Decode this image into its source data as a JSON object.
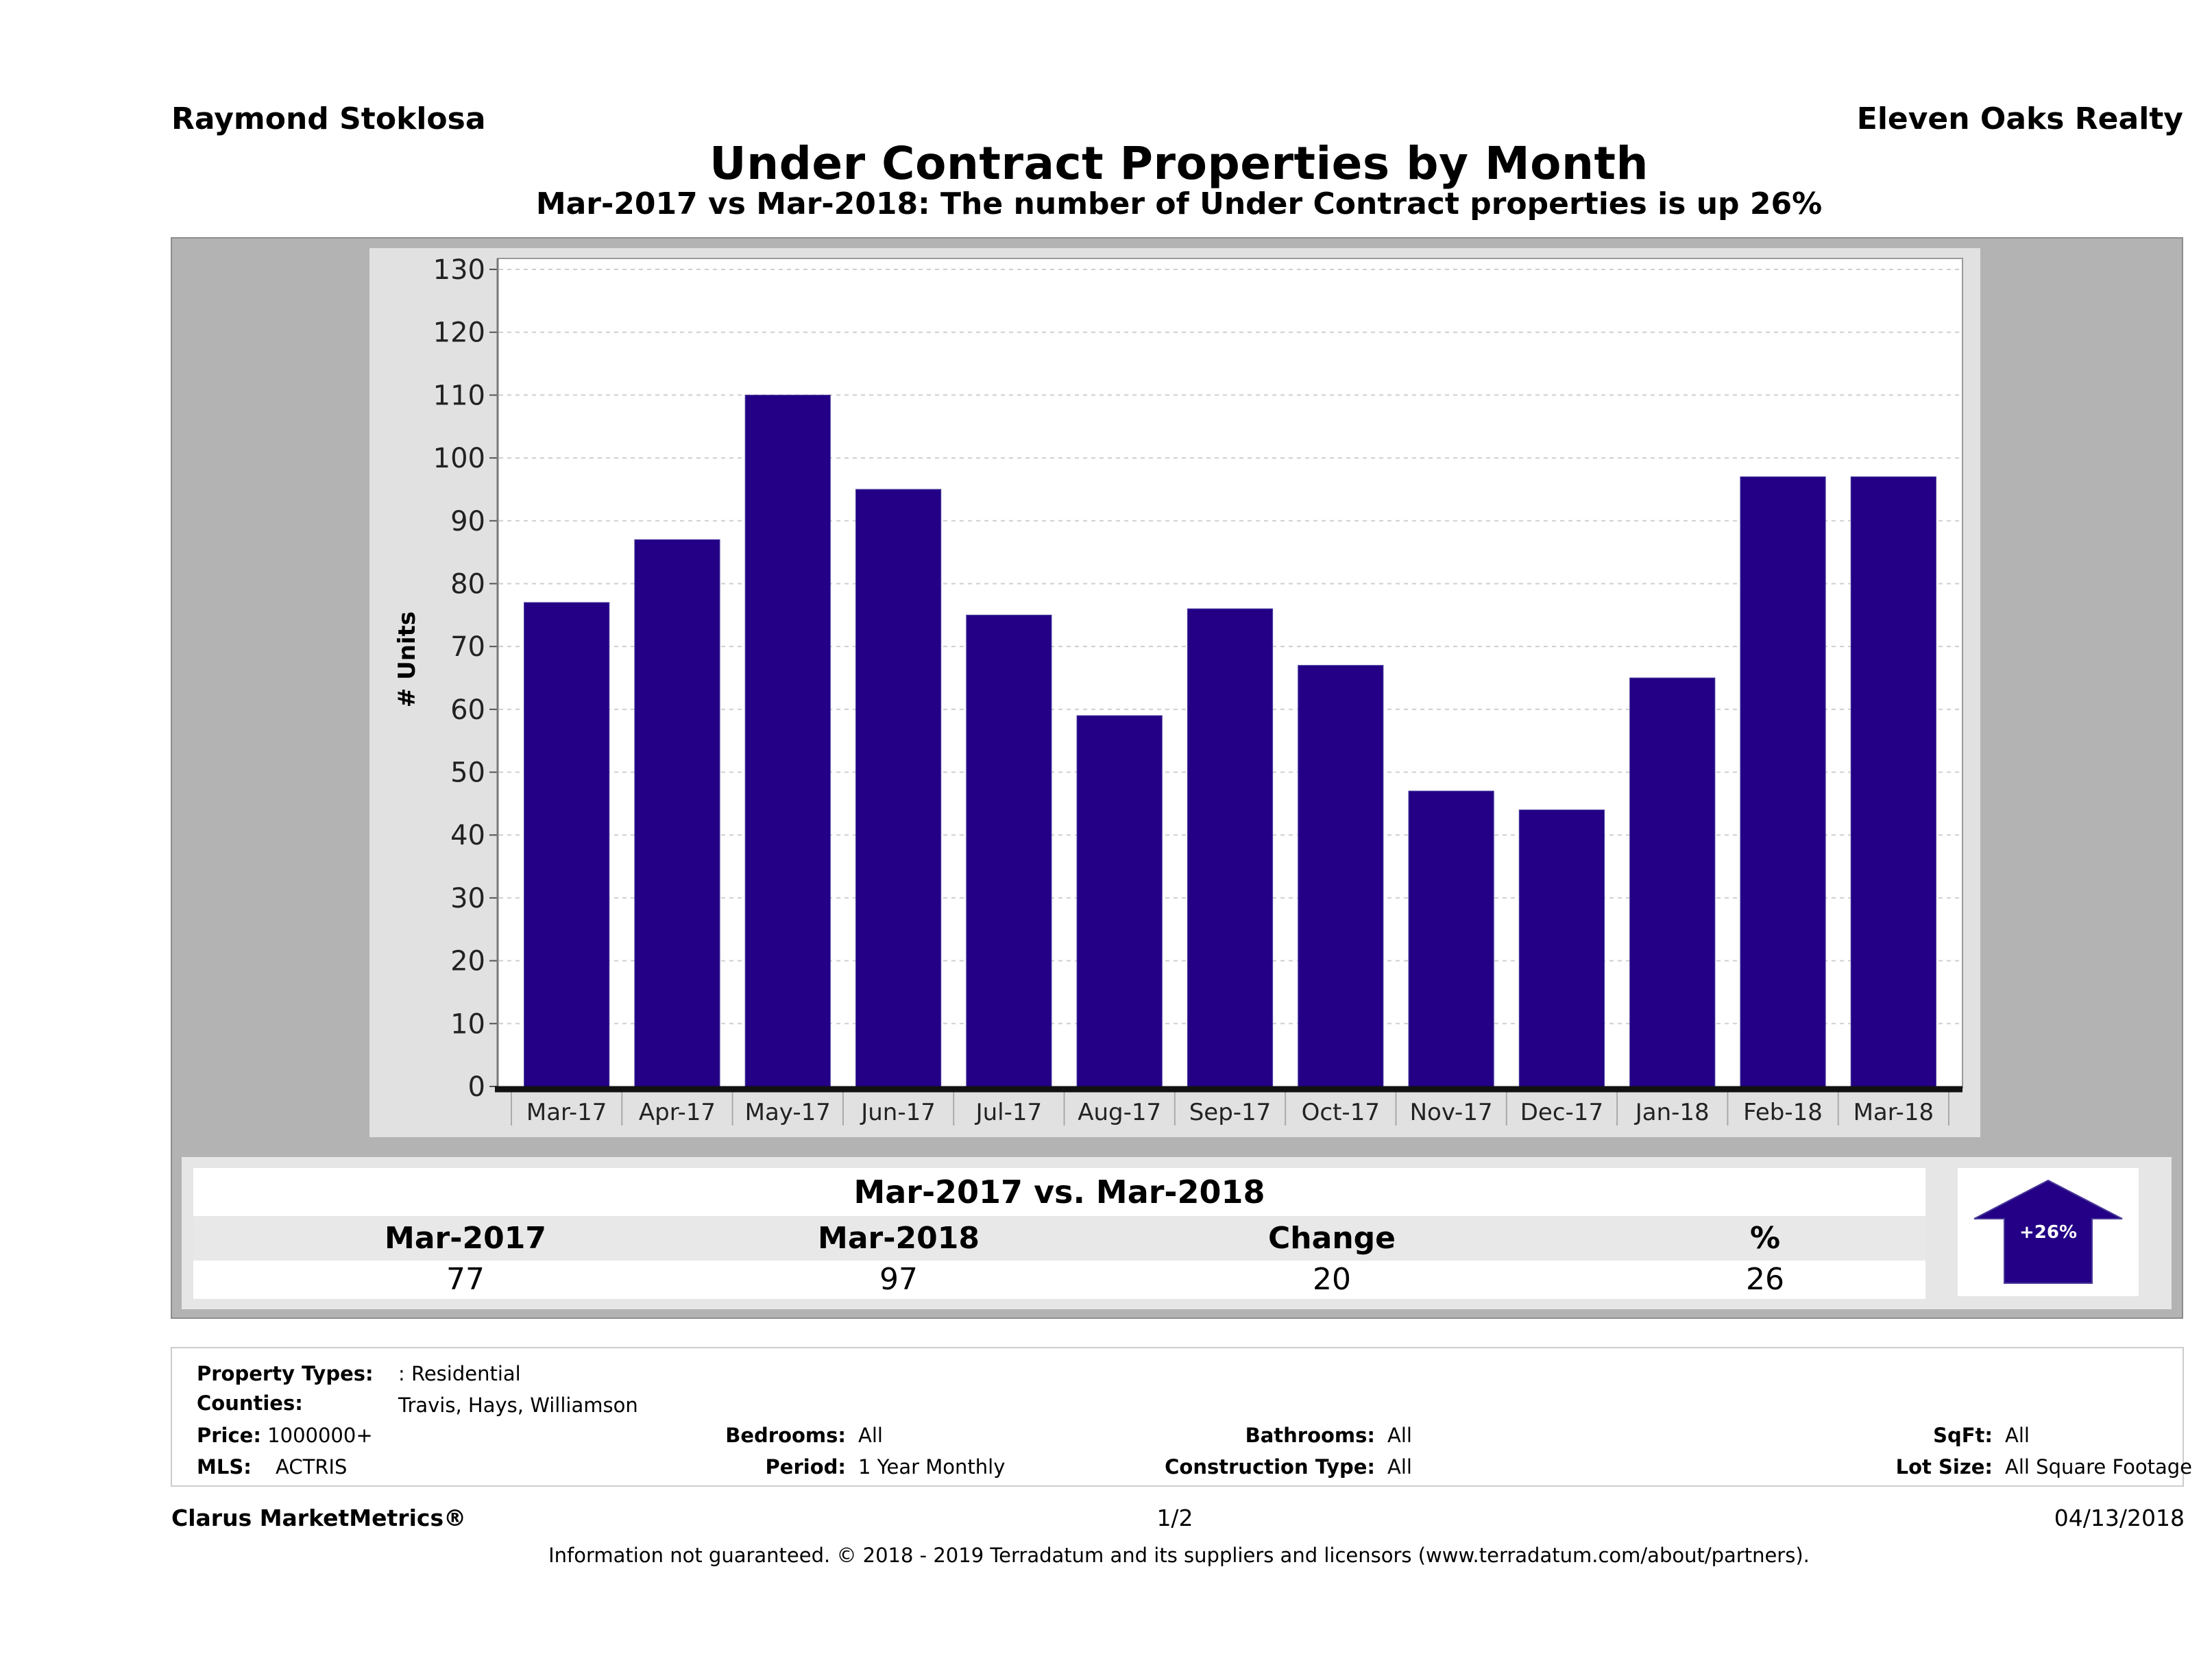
{
  "header": {
    "agent_name": "Raymond Stoklosa",
    "brokerage_name": "Eleven Oaks Realty",
    "title": "Under Contract Properties by Month",
    "subtitle": "Mar-2017 vs Mar-2018: The number of Under Contract  properties is up 26%"
  },
  "chart_data": {
    "type": "bar",
    "title": "Under Contract Properties by Month",
    "xlabel": "",
    "ylabel": "# Units",
    "categories": [
      "Mar-17",
      "Apr-17",
      "May-17",
      "Jun-17",
      "Jul-17",
      "Aug-17",
      "Sep-17",
      "Oct-17",
      "Nov-17",
      "Dec-17",
      "Jan-18",
      "Feb-18",
      "Mar-18"
    ],
    "values": [
      77,
      87,
      110,
      95,
      75,
      59,
      76,
      67,
      47,
      44,
      65,
      97,
      97
    ],
    "ylim": [
      0,
      130
    ],
    "yticks": [
      0,
      10,
      20,
      30,
      40,
      50,
      60,
      70,
      80,
      90,
      100,
      110,
      120,
      130
    ],
    "grid": true,
    "legend": "none",
    "bar_color": "#230085"
  },
  "summary": {
    "title": "Mar-2017 vs. Mar-2018",
    "headers": [
      "Mar-2017",
      "Mar-2018",
      "Change",
      "%"
    ],
    "values": [
      "77",
      "97",
      "20",
      "26"
    ],
    "badge_label": "+26%",
    "badge_direction": "up",
    "badge_color": "#230085"
  },
  "filters": {
    "property_types": {
      "label": "Property Types:",
      "value": ": Residential"
    },
    "counties": {
      "label": "Counties:",
      "value": "Travis, Hays, Williamson"
    },
    "price": {
      "label": "Price:",
      "value": "1000000+"
    },
    "mls": {
      "label": "MLS:",
      "value": "ACTRIS"
    },
    "bedrooms": {
      "label": "Bedrooms:",
      "value": "All"
    },
    "period": {
      "label": "Period:",
      "value": "1 Year Monthly"
    },
    "bathrooms": {
      "label": "Bathrooms:",
      "value": "All"
    },
    "construction_type": {
      "label": "Construction Type:",
      "value": "All"
    },
    "sqft": {
      "label": "SqFt:",
      "value": "All"
    },
    "lot_size": {
      "label": "Lot Size:",
      "value": "All Square Footage"
    }
  },
  "footer": {
    "brand": "Clarus MarketMetrics®",
    "page": "1/2",
    "date": "04/13/2018",
    "disclaimer": "Information not guaranteed. © 2018 - 2019 Terradatum and its suppliers and licensors (www.terradatum.com/about/partners)."
  }
}
